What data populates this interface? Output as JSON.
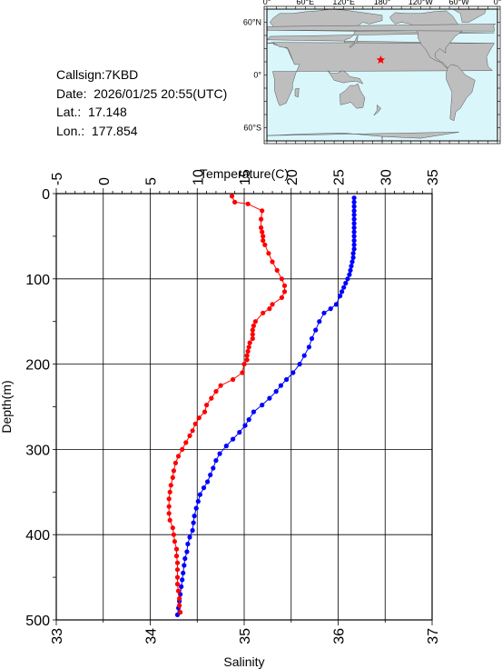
{
  "info": {
    "callsign": "Callsign:7KBD",
    "date": "Date:  2026/01/25 20:55(UTC)",
    "lat": "Lat.:  17.148",
    "lon": "Lon.:  177.854"
  },
  "map": {
    "top_labels": [
      "0°",
      "60°E",
      "120°E",
      "180°",
      "120°W",
      "60°W",
      "0°"
    ],
    "left_labels": [
      "60°N",
      "0°",
      "60°S"
    ],
    "ocean_color": "#d9f6fb",
    "land_color": "#bebebe",
    "marker": {
      "lat": 17.148,
      "lon": 177.854,
      "color": "#ff0000",
      "icon": "star"
    }
  },
  "chart_data": {
    "type": "line",
    "ylabel": "Depth(m)",
    "top_xlabel": "Temperature(C)",
    "bottom_xlabel": "Salinity",
    "ylim": [
      500,
      0
    ],
    "y_ticks": [
      "0",
      "100",
      "200",
      "300",
      "400",
      "500"
    ],
    "temp_xlim": [
      -5,
      35
    ],
    "temp_ticks": [
      "-5",
      "0",
      "5",
      "10",
      "15",
      "20",
      "25",
      "30",
      "35"
    ],
    "sal_xlim": [
      33,
      37
    ],
    "sal_ticks": [
      "33",
      "34",
      "35",
      "36",
      "37"
    ],
    "grid": true,
    "series": [
      {
        "axis": "temperature",
        "color": "#0000ff",
        "points": [
          [
            26.7,
            5
          ],
          [
            26.7,
            10
          ],
          [
            26.7,
            15
          ],
          [
            26.7,
            20
          ],
          [
            26.7,
            25
          ],
          [
            26.7,
            30
          ],
          [
            26.7,
            35
          ],
          [
            26.7,
            40
          ],
          [
            26.7,
            45
          ],
          [
            26.7,
            50
          ],
          [
            26.7,
            55
          ],
          [
            26.7,
            60
          ],
          [
            26.7,
            65
          ],
          [
            26.6,
            70
          ],
          [
            26.6,
            75
          ],
          [
            26.5,
            80
          ],
          [
            26.4,
            85
          ],
          [
            26.3,
            90
          ],
          [
            26.2,
            95
          ],
          [
            26.0,
            100
          ],
          [
            25.8,
            105
          ],
          [
            25.6,
            110
          ],
          [
            25.4,
            115
          ],
          [
            25.2,
            120
          ],
          [
            24.8,
            130
          ],
          [
            24.2,
            135
          ],
          [
            23.5,
            140
          ],
          [
            23.0,
            150
          ],
          [
            22.6,
            160
          ],
          [
            22.2,
            170
          ],
          [
            21.9,
            180
          ],
          [
            21.4,
            190
          ],
          [
            20.9,
            200
          ],
          [
            20.2,
            210
          ],
          [
            19.5,
            218
          ],
          [
            18.9,
            225
          ],
          [
            18.4,
            232
          ],
          [
            17.7,
            240
          ],
          [
            16.9,
            248
          ],
          [
            16.0,
            256
          ],
          [
            15.5,
            265
          ],
          [
            15.1,
            272
          ],
          [
            14.5,
            280
          ],
          [
            13.8,
            288
          ],
          [
            13.1,
            296
          ],
          [
            12.4,
            305
          ],
          [
            12.0,
            313
          ],
          [
            11.7,
            322
          ],
          [
            11.4,
            330
          ],
          [
            11.1,
            338
          ],
          [
            10.7,
            345
          ],
          [
            10.3,
            353
          ],
          [
            10.1,
            361
          ],
          [
            9.9,
            369
          ],
          [
            9.7,
            378
          ],
          [
            9.6,
            386
          ],
          [
            9.5,
            395
          ],
          [
            9.2,
            403
          ],
          [
            9.0,
            411
          ],
          [
            8.9,
            420
          ],
          [
            8.7,
            428
          ],
          [
            8.6,
            436
          ],
          [
            8.5,
            445
          ],
          [
            8.4,
            453
          ],
          [
            8.3,
            461
          ],
          [
            8.2,
            470
          ],
          [
            8.1,
            478
          ],
          [
            8.0,
            486
          ],
          [
            7.9,
            494
          ]
        ]
      },
      {
        "axis": "salinity",
        "color": "#ff0000",
        "points": [
          [
            34.87,
            3
          ],
          [
            34.9,
            10
          ],
          [
            35.04,
            12
          ],
          [
            35.19,
            20
          ],
          [
            35.18,
            30
          ],
          [
            35.18,
            40
          ],
          [
            35.19,
            45
          ],
          [
            35.2,
            50
          ],
          [
            35.2,
            55
          ],
          [
            35.22,
            60
          ],
          [
            35.26,
            70
          ],
          [
            35.3,
            80
          ],
          [
            35.35,
            90
          ],
          [
            35.4,
            100
          ],
          [
            35.43,
            108
          ],
          [
            35.43,
            115
          ],
          [
            35.4,
            122
          ],
          [
            35.3,
            130
          ],
          [
            35.27,
            135
          ],
          [
            35.2,
            140
          ],
          [
            35.12,
            150
          ],
          [
            35.1,
            155
          ],
          [
            35.09,
            160
          ],
          [
            35.09,
            165
          ],
          [
            35.09,
            170
          ],
          [
            35.06,
            175
          ],
          [
            35.05,
            180
          ],
          [
            35.04,
            185
          ],
          [
            35.03,
            190
          ],
          [
            35.03,
            195
          ],
          [
            35.0,
            200
          ],
          [
            34.98,
            210
          ],
          [
            34.88,
            218
          ],
          [
            34.75,
            225
          ],
          [
            34.7,
            232
          ],
          [
            34.65,
            240
          ],
          [
            34.6,
            248
          ],
          [
            34.58,
            256
          ],
          [
            34.52,
            263
          ],
          [
            34.48,
            270
          ],
          [
            34.45,
            278
          ],
          [
            34.42,
            284
          ],
          [
            34.38,
            292
          ],
          [
            34.34,
            300
          ],
          [
            34.3,
            308
          ],
          [
            34.27,
            316
          ],
          [
            34.25,
            325
          ],
          [
            34.24,
            333
          ],
          [
            34.22,
            342
          ],
          [
            34.21,
            350
          ],
          [
            34.2,
            358
          ],
          [
            34.2,
            367
          ],
          [
            34.2,
            375
          ],
          [
            34.21,
            383
          ],
          [
            34.24,
            392
          ],
          [
            34.25,
            400
          ],
          [
            34.26,
            408
          ],
          [
            34.28,
            417
          ],
          [
            34.28,
            425
          ],
          [
            34.29,
            433
          ],
          [
            34.29,
            441
          ],
          [
            34.29,
            450
          ],
          [
            34.29,
            458
          ],
          [
            34.3,
            466
          ],
          [
            34.31,
            475
          ],
          [
            34.31,
            483
          ],
          [
            34.32,
            491
          ]
        ]
      }
    ]
  }
}
